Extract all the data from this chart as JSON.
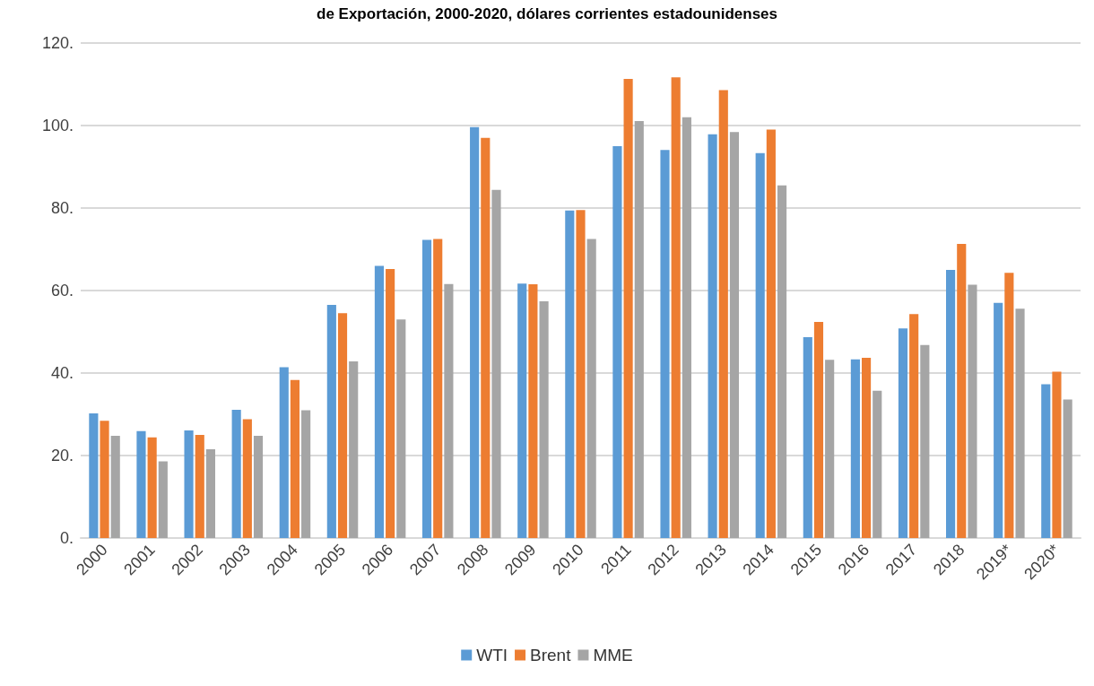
{
  "chart_data": {
    "type": "bar",
    "title": "de Exportación, 2000-2020, dólares corrientes estadounidenses",
    "categories": [
      "2000",
      "2001",
      "2002",
      "2003",
      "2004",
      "2005",
      "2006",
      "2007",
      "2008",
      "2009",
      "2010",
      "2011",
      "2012",
      "2013",
      "2014",
      "2015",
      "2016",
      "2017",
      "2018",
      "2019*",
      "2020*"
    ],
    "series": [
      {
        "name": "WTI",
        "color": "#5b9bd5",
        "values": [
          30.2,
          25.9,
          26.1,
          31.1,
          41.4,
          56.5,
          66.0,
          72.3,
          99.6,
          61.7,
          79.4,
          95.0,
          94.1,
          97.9,
          93.3,
          48.7,
          43.3,
          50.8,
          65.0,
          57.0,
          37.3
        ]
      },
      {
        "name": "Brent",
        "color": "#ed7d31",
        "values": [
          28.4,
          24.4,
          25.0,
          28.8,
          38.3,
          54.5,
          65.2,
          72.5,
          97.0,
          61.5,
          79.5,
          111.3,
          111.7,
          108.6,
          99.0,
          52.4,
          43.7,
          54.3,
          71.3,
          64.3,
          40.3
        ]
      },
      {
        "name": "MME",
        "color": "#a5a5a5",
        "values": [
          24.8,
          18.6,
          21.5,
          24.8,
          31.0,
          42.8,
          53.0,
          61.6,
          84.4,
          57.4,
          72.5,
          101.1,
          102.0,
          98.4,
          85.5,
          43.2,
          35.7,
          46.8,
          61.4,
          55.6,
          33.6
        ]
      }
    ],
    "ylim": [
      0,
      120
    ],
    "yticks": [
      {
        "value": 0,
        "label": "0."
      },
      {
        "value": 20,
        "label": "20."
      },
      {
        "value": 40,
        "label": "40."
      },
      {
        "value": 60,
        "label": "60."
      },
      {
        "value": 80,
        "label": "80."
      },
      {
        "value": 100,
        "label": "100."
      },
      {
        "value": 120,
        "label": "120."
      }
    ],
    "grid": "y",
    "legend": "bottom"
  }
}
